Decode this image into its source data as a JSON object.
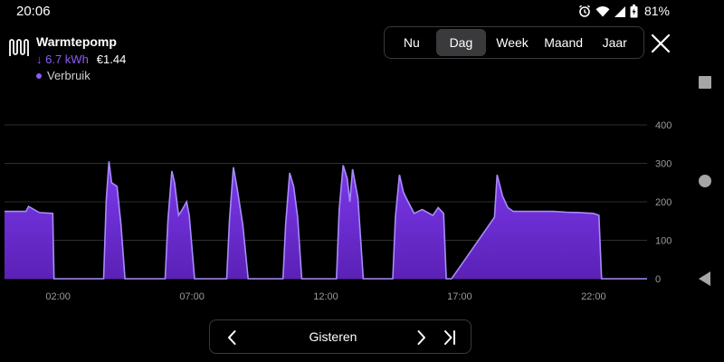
{
  "status_bar": {
    "time": "20:06",
    "battery": "81%",
    "icons": [
      "alarm-icon",
      "wifi-icon",
      "signal-icon",
      "battery-icon"
    ]
  },
  "device": {
    "name": "Warmtepomp",
    "energy": "↓ 6.7 kWh",
    "cost": "€1.44",
    "legend_label": "Verbruik",
    "accent_color": "#8b5cf6"
  },
  "period_tabs": [
    {
      "label": "Nu",
      "active": false
    },
    {
      "label": "Dag",
      "active": true
    },
    {
      "label": "Week",
      "active": false
    },
    {
      "label": "Maand",
      "active": false
    },
    {
      "label": "Jaar",
      "active": false
    }
  ],
  "date_nav": {
    "label": "Gisteren"
  },
  "chart_data": {
    "type": "area",
    "title": "",
    "xlabel": "",
    "ylabel": "",
    "ylim": [
      0,
      400
    ],
    "xlim": [
      0,
      24
    ],
    "yticks": [
      0,
      100,
      200,
      300,
      400
    ],
    "xticks": [
      {
        "label": "02:00",
        "value": 2
      },
      {
        "label": "07:00",
        "value": 7
      },
      {
        "label": "12:00",
        "value": 12
      },
      {
        "label": "17:00",
        "value": 17
      },
      {
        "label": "22:00",
        "value": 22
      }
    ],
    "grid": true,
    "series": [
      {
        "name": "Verbruik",
        "color": "#7c3aed",
        "x": [
          0,
          0.8,
          0.9,
          1.3,
          1.8,
          1.85,
          3.7,
          3.8,
          3.9,
          4.0,
          4.2,
          4.35,
          4.5,
          6.0,
          6.1,
          6.25,
          6.35,
          6.5,
          6.6,
          6.8,
          6.9,
          7.1,
          8.3,
          8.4,
          8.55,
          8.7,
          8.9,
          9.1,
          10.4,
          10.5,
          10.65,
          10.8,
          10.95,
          11.1,
          12.4,
          12.5,
          12.65,
          12.8,
          12.9,
          13.0,
          13.2,
          13.4,
          14.5,
          14.6,
          14.75,
          14.9,
          15.0,
          15.3,
          15.6,
          16.0,
          16.2,
          16.4,
          16.5,
          16.7,
          18.3,
          18.4,
          18.6,
          18.8,
          19.0,
          19.4,
          20.5,
          21.0,
          21.5,
          22.0,
          22.2,
          22.3,
          22.45,
          23.4,
          23.5,
          24
        ],
        "y": [
          175,
          175,
          188,
          172,
          170,
          0,
          0,
          205,
          305,
          250,
          240,
          140,
          0,
          0,
          150,
          280,
          250,
          165,
          175,
          200,
          165,
          0,
          0,
          150,
          290,
          230,
          140,
          0,
          0,
          140,
          275,
          240,
          160,
          0,
          0,
          180,
          295,
          260,
          200,
          285,
          210,
          0,
          0,
          160,
          270,
          225,
          210,
          170,
          180,
          165,
          185,
          170,
          0,
          0,
          160,
          270,
          215,
          185,
          175,
          175,
          175,
          173,
          172,
          170,
          165,
          0,
          0,
          0,
          0,
          0
        ]
      }
    ]
  }
}
